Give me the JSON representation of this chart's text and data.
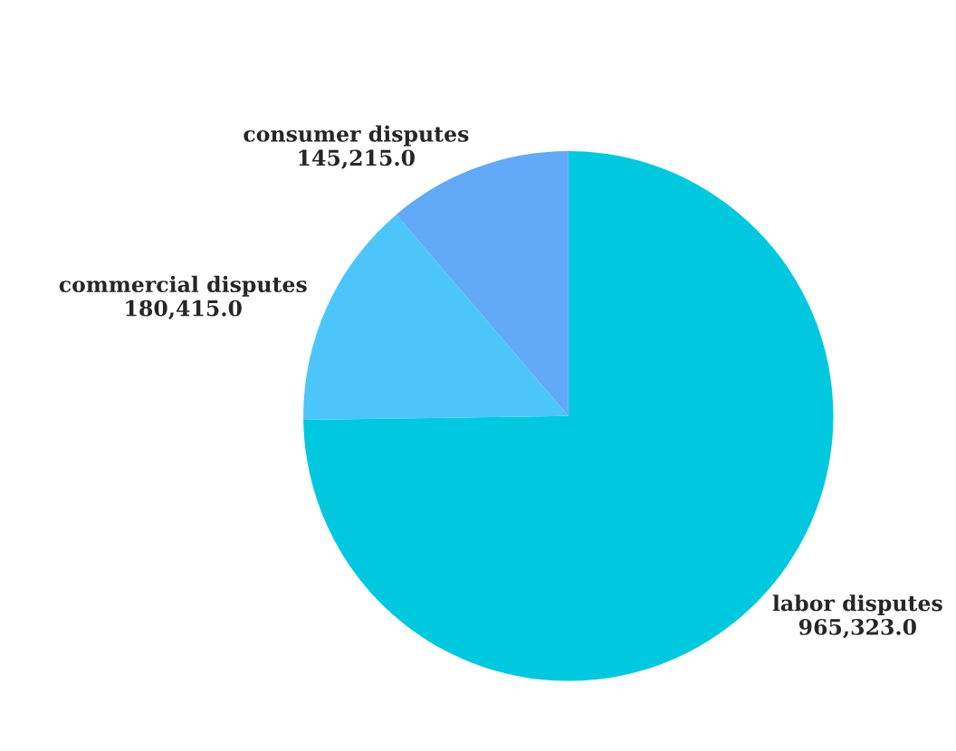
{
  "chart_data": {
    "type": "pie",
    "categories": [
      "labor disputes",
      "commercial disputes",
      "consumer disputes"
    ],
    "values": [
      965323.0,
      180415.0,
      145215.0
    ],
    "colors": [
      "#00c9df",
      "#4cc6fa",
      "#62a9f8"
    ],
    "value_labels": [
      "965,323.0",
      "180,415.0",
      "145,215.0"
    ],
    "legend": false
  }
}
